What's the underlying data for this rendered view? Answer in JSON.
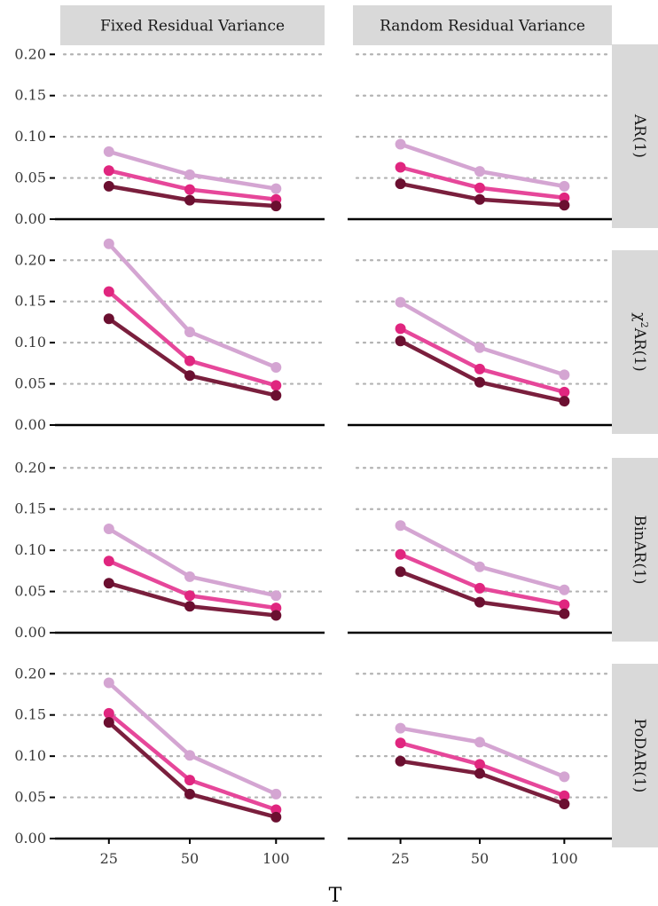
{
  "chart_data": {
    "type": "line",
    "xlabel": "T",
    "x_categories": [
      "25",
      "50",
      "100"
    ],
    "y_ticks": [
      "0.00",
      "0.05",
      "0.10",
      "0.15",
      "0.20"
    ],
    "ylim": [
      0,
      0.21
    ],
    "grid": "dotted horizontal",
    "columns": [
      "Fixed Residual Variance",
      "Random Residual Variance"
    ],
    "rows": [
      {
        "label": "AR(1)",
        "label_tex": {
          "pre": "",
          "base": "",
          "sup": "",
          "post": "AR(1)"
        }
      },
      {
        "label": "χ2AR(1)",
        "label_tex": {
          "pre": "",
          "base": "χ",
          "sup": "2",
          "post": "AR(1)"
        }
      },
      {
        "label": "BinAR(1)",
        "label_tex": {
          "pre": "",
          "base": "",
          "sup": "",
          "post": "BinAR(1)"
        }
      },
      {
        "label": "PoDAR(1)",
        "label_tex": {
          "pre": "",
          "base": "",
          "sup": "",
          "post": "PoDAR(1)"
        }
      }
    ],
    "series_colors": [
      "#d4a5d2",
      "#e6479a",
      "#7a1f3d"
    ],
    "point_colors": [
      "#d4a5d2",
      "#e0267f",
      "#6b0f30"
    ],
    "panels": [
      {
        "row": 0,
        "col": 0,
        "series": [
          [
            0.082,
            0.054,
            0.037
          ],
          [
            0.059,
            0.036,
            0.024
          ],
          [
            0.04,
            0.023,
            0.016
          ]
        ]
      },
      {
        "row": 0,
        "col": 1,
        "series": [
          [
            0.091,
            0.058,
            0.04
          ],
          [
            0.063,
            0.038,
            0.026
          ],
          [
            0.043,
            0.024,
            0.017
          ]
        ]
      },
      {
        "row": 1,
        "col": 0,
        "series": [
          [
            0.22,
            0.113,
            0.07
          ],
          [
            0.162,
            0.078,
            0.048
          ],
          [
            0.129,
            0.06,
            0.036
          ]
        ]
      },
      {
        "row": 1,
        "col": 1,
        "series": [
          [
            0.149,
            0.094,
            0.061
          ],
          [
            0.117,
            0.068,
            0.04
          ],
          [
            0.102,
            0.052,
            0.029
          ]
        ]
      },
      {
        "row": 2,
        "col": 0,
        "series": [
          [
            0.126,
            0.068,
            0.045
          ],
          [
            0.087,
            0.045,
            0.03
          ],
          [
            0.06,
            0.032,
            0.021
          ]
        ]
      },
      {
        "row": 2,
        "col": 1,
        "series": [
          [
            0.13,
            0.08,
            0.052
          ],
          [
            0.095,
            0.054,
            0.034
          ],
          [
            0.074,
            0.037,
            0.023
          ]
        ]
      },
      {
        "row": 3,
        "col": 0,
        "series": [
          [
            0.189,
            0.101,
            0.054
          ],
          [
            0.152,
            0.071,
            0.035
          ],
          [
            0.141,
            0.054,
            0.026
          ]
        ]
      },
      {
        "row": 3,
        "col": 1,
        "series": [
          [
            0.134,
            0.117,
            0.075
          ],
          [
            0.116,
            0.09,
            0.052
          ],
          [
            0.094,
            0.079,
            0.042
          ]
        ]
      }
    ]
  }
}
